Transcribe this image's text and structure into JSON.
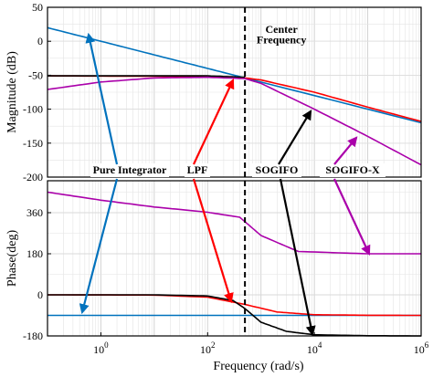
{
  "chart_data": [
    {
      "type": "line",
      "panel": "magnitude",
      "ylabel": "Magnitude (dB)",
      "xscale": "log",
      "xlim": [
        0.1,
        1000000
      ],
      "ylim": [
        -200,
        50
      ],
      "yticks": [
        50,
        0,
        -50,
        -100,
        -150,
        -200
      ],
      "grid": true,
      "series": [
        {
          "name": "Pure Integrator",
          "color": "#0072bd",
          "x": [
            0.1,
            1,
            10,
            100,
            500,
            1000000
          ],
          "y": [
            20,
            0,
            -20,
            -40,
            -54,
            -120
          ]
        },
        {
          "name": "LPF",
          "color": "#ff0000",
          "x": [
            0.1,
            10,
            100,
            500,
            1000,
            10000,
            100000,
            1000000
          ],
          "y": [
            -51,
            -51.5,
            -52,
            -54,
            -57,
            -75,
            -97,
            -118
          ]
        },
        {
          "name": "SOGIFO",
          "color": "#000000",
          "x": [
            0.1,
            10,
            100,
            500
          ],
          "y": [
            -51,
            -51,
            -51,
            -53
          ]
        },
        {
          "name": "SOGIFO-X",
          "color": "#aa00aa",
          "x": [
            0.1,
            1,
            10,
            100,
            500,
            1000,
            10000,
            100000,
            1000000
          ],
          "y": [
            -71,
            -60,
            -54,
            -53,
            -55,
            -62,
            -100,
            -140,
            -182
          ]
        }
      ],
      "annotations": [
        {
          "text": "Center",
          "x": 500,
          "y": 18
        },
        {
          "text": "Frequency",
          "x": 500,
          "y": 2
        }
      ]
    },
    {
      "type": "line",
      "panel": "phase",
      "xlabel": "Frequency  (rad/s)",
      "ylabel": "Phase(deg)",
      "xscale": "log",
      "xlim": [
        0.1,
        1000000
      ],
      "xticks": [
        1,
        100,
        10000,
        1000000
      ],
      "xtick_labels": [
        {
          "base": "10",
          "exp": "0"
        },
        {
          "base": "10",
          "exp": "2"
        },
        {
          "base": "10",
          "exp": "4"
        },
        {
          "base": "10",
          "exp": "6"
        }
      ],
      "ylim": [
        -180,
        500
      ],
      "yticks": [
        360,
        180,
        0,
        -180
      ],
      "grid": true,
      "series": [
        {
          "name": "Pure Integrator",
          "color": "#0072bd",
          "x": [
            0.1,
            1000000
          ],
          "y": [
            -90,
            -90
          ]
        },
        {
          "name": "LPF",
          "color": "#ff0000",
          "x": [
            0.1,
            10,
            100,
            500,
            2000,
            10000,
            100000,
            1000000
          ],
          "y": [
            0,
            -1,
            -10,
            -42,
            -75,
            -87,
            -89.5,
            -90
          ]
        },
        {
          "name": "SOGIFO",
          "color": "#000000",
          "x": [
            0.1,
            10,
            100,
            300,
            500,
            1000,
            3000,
            10000,
            100000,
            1000000
          ],
          "y": [
            0,
            0,
            -5,
            -25,
            -60,
            -120,
            -160,
            -175,
            -179,
            -180
          ]
        },
        {
          "name": "SOGIFO-X",
          "color": "#aa00aa",
          "x": [
            0.1,
            1,
            10,
            100,
            400,
            1000,
            5000,
            100000,
            1000000
          ],
          "y": [
            450,
            415,
            385,
            362,
            340,
            260,
            190,
            180,
            180
          ]
        }
      ]
    }
  ],
  "legend_annotations": [
    {
      "label": "Pure Integrator",
      "color": "#0072bd"
    },
    {
      "label": "LPF",
      "color": "#ff0000"
    },
    {
      "label": "SOGIFO",
      "color": "#000000"
    },
    {
      "label": "SOGIFO-X",
      "color": "#aa00aa"
    }
  ],
  "center_frequency": 500
}
